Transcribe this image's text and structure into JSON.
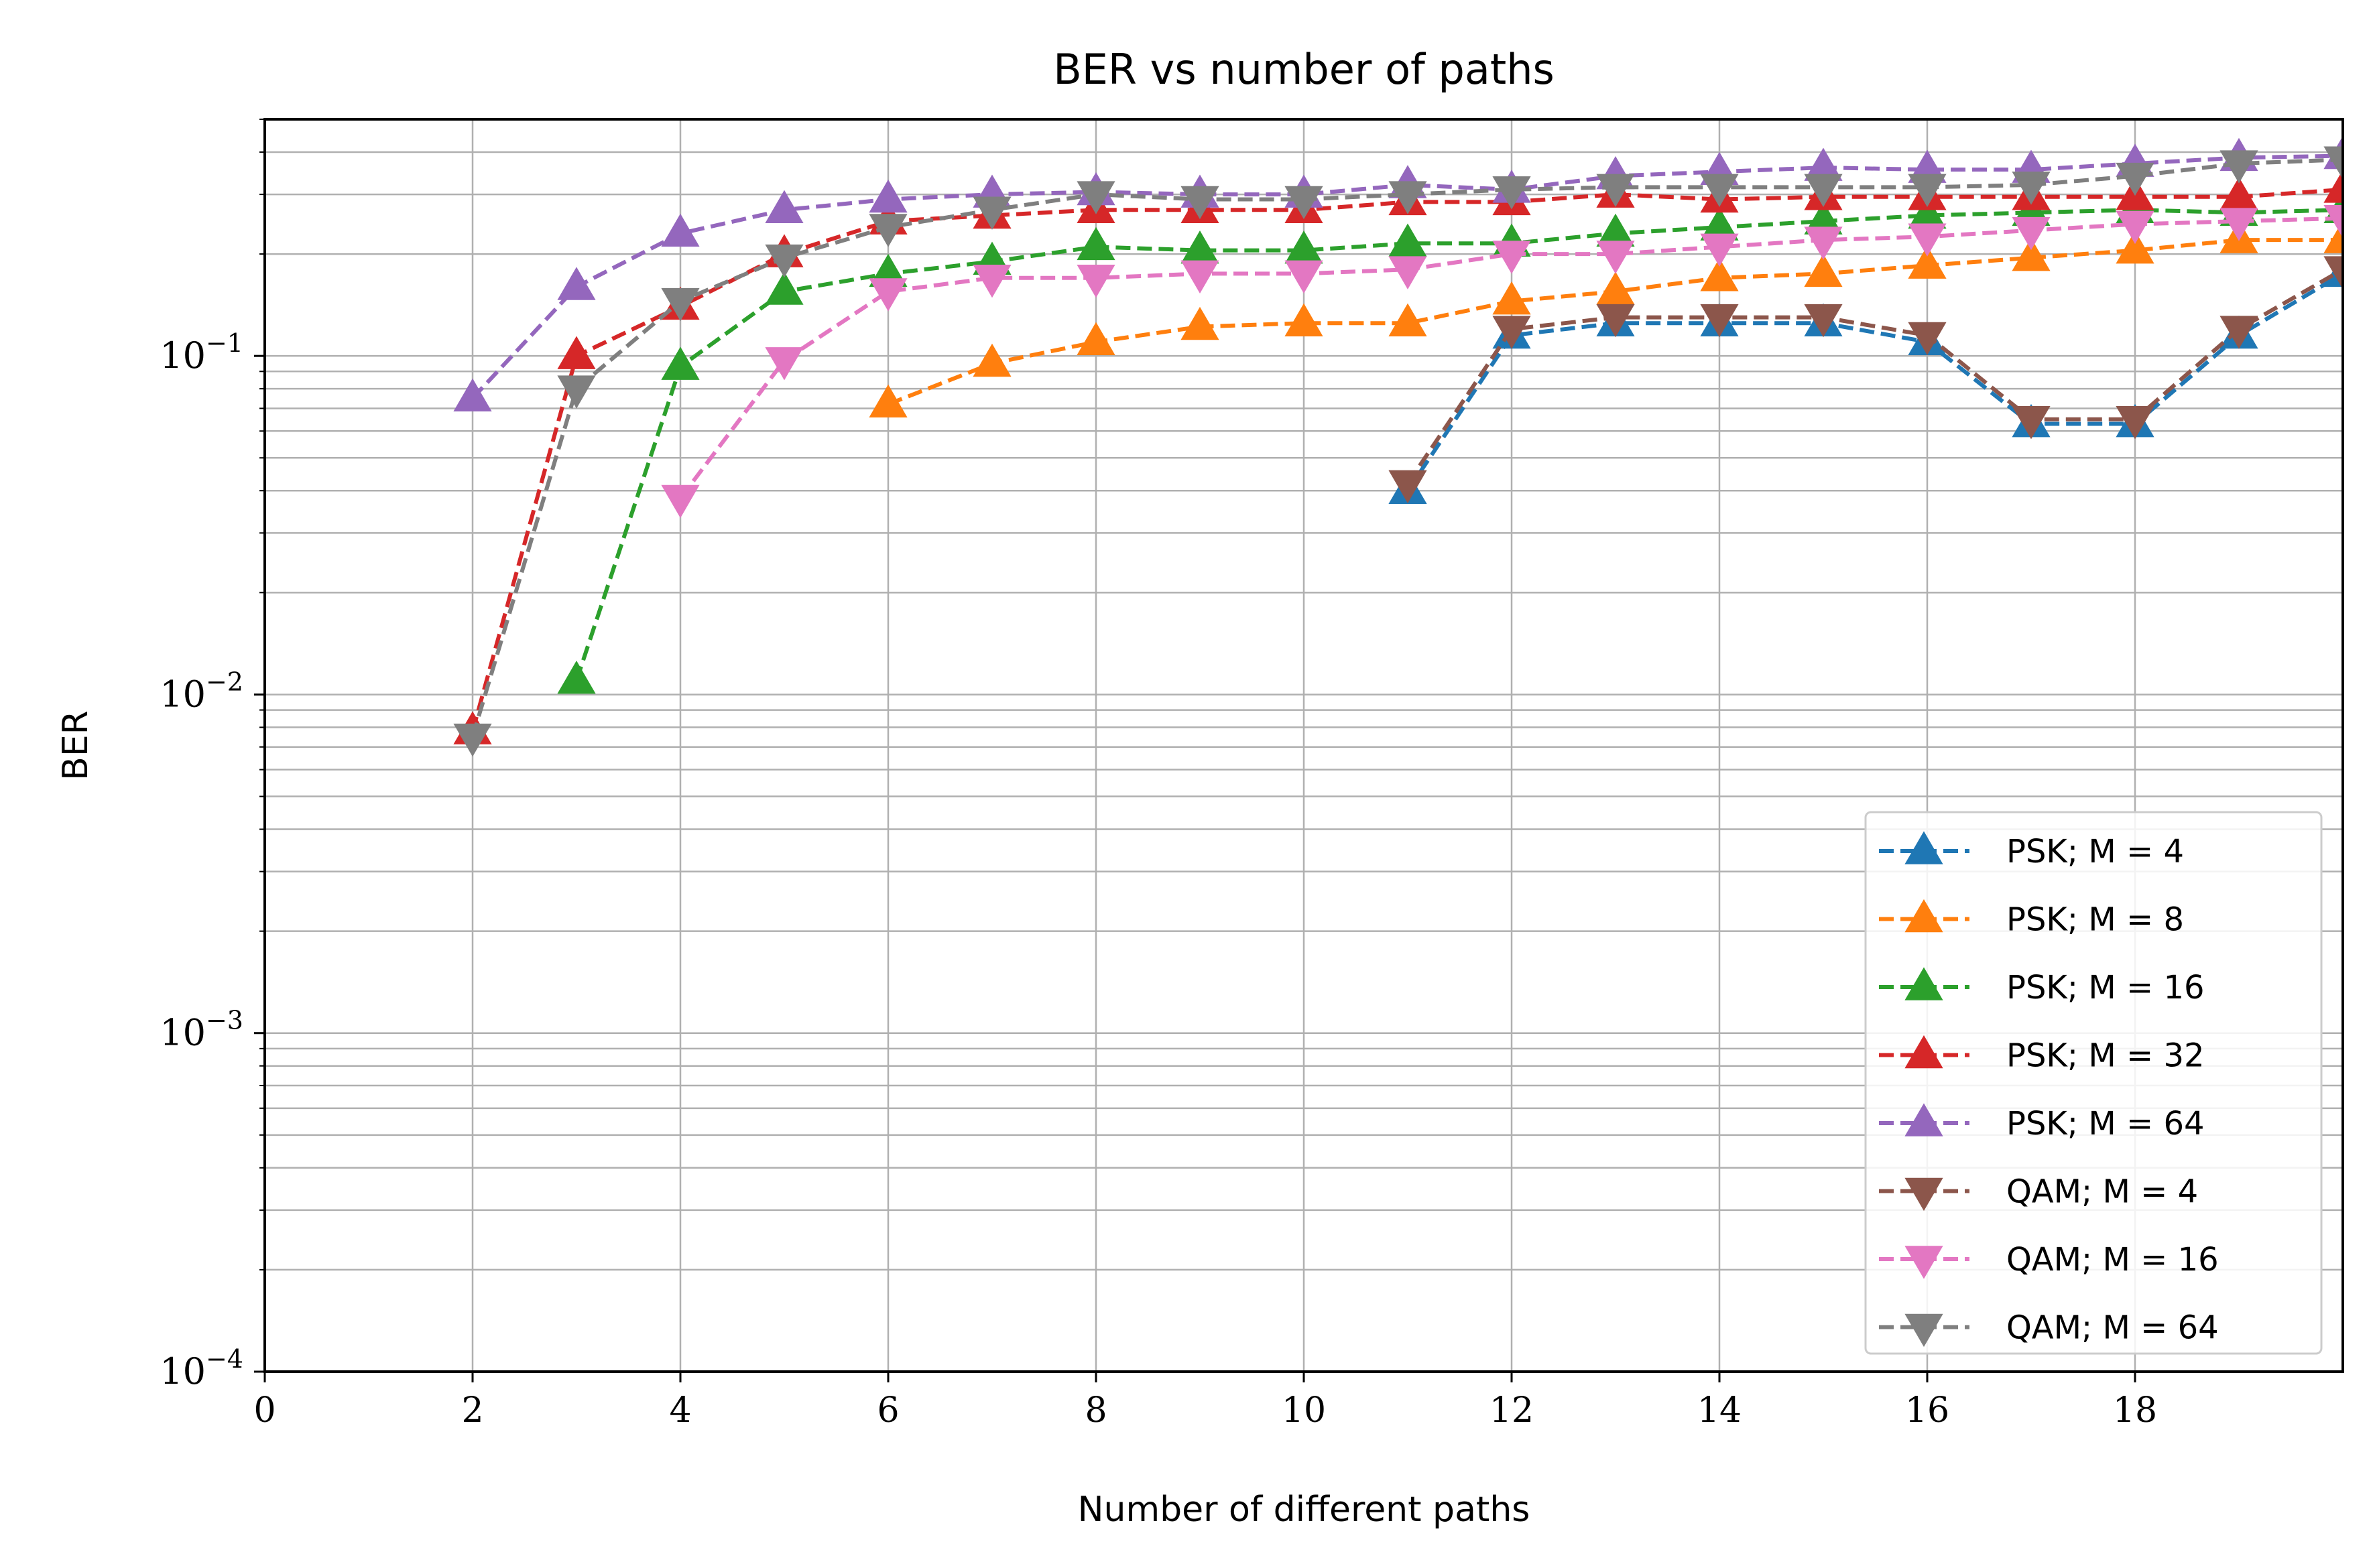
{
  "chart_data": {
    "type": "line",
    "title": "BER vs number of paths",
    "xlabel": "Number of different paths",
    "ylabel": "BER",
    "xlim": [
      0,
      20
    ],
    "ylim": [
      0.0001,
      0.5
    ],
    "yscale": "log",
    "grid": true,
    "legend_position": "lower right",
    "x_ticks": [
      0,
      2,
      4,
      6,
      8,
      10,
      12,
      14,
      16,
      18
    ],
    "x_tick_labels": [
      "0",
      "2",
      "4",
      "6",
      "8",
      "10",
      "12",
      "14",
      "16",
      "18"
    ],
    "y_ticks": [
      0.0001,
      0.001,
      0.01,
      0.1
    ],
    "y_tick_labels": [
      {
        "base": "10",
        "exp": "−4"
      },
      {
        "base": "10",
        "exp": "−3"
      },
      {
        "base": "10",
        "exp": "−2"
      },
      {
        "base": "10",
        "exp": "−1"
      }
    ],
    "series": [
      {
        "name": "PSK; M = 4",
        "color": "#1f77b4",
        "marker": "triangle-up",
        "x": [
          11,
          12,
          13,
          14,
          15,
          16,
          17,
          18,
          19,
          20
        ],
        "y": [
          0.04,
          0.115,
          0.125,
          0.125,
          0.125,
          0.11,
          0.063,
          0.063,
          0.115,
          0.175
        ]
      },
      {
        "name": "PSK; M = 8",
        "color": "#ff7f0e",
        "marker": "triangle-up",
        "x": [
          6,
          7,
          8,
          9,
          10,
          11,
          12,
          13,
          14,
          15,
          16,
          17,
          18,
          19,
          20
        ],
        "y": [
          0.072,
          0.095,
          0.11,
          0.122,
          0.125,
          0.125,
          0.145,
          0.155,
          0.17,
          0.175,
          0.185,
          0.195,
          0.205,
          0.22,
          0.22
        ]
      },
      {
        "name": "PSK; M = 16",
        "color": "#2ca02c",
        "marker": "triangle-up",
        "x": [
          3,
          4,
          5,
          6,
          7,
          8,
          9,
          10,
          11,
          12,
          13,
          14,
          15,
          16,
          17,
          18,
          19,
          20
        ],
        "y": [
          0.011,
          0.093,
          0.155,
          0.175,
          0.19,
          0.21,
          0.205,
          0.205,
          0.215,
          0.215,
          0.23,
          0.24,
          0.25,
          0.26,
          0.265,
          0.27,
          0.265,
          0.27
        ]
      },
      {
        "name": "PSK; M = 32",
        "color": "#d62728",
        "marker": "triangle-up",
        "x": [
          2,
          3,
          4,
          5,
          6,
          7,
          8,
          9,
          10,
          11,
          12,
          13,
          14,
          15,
          16,
          17,
          18,
          19,
          20
        ],
        "y": [
          0.0078,
          0.1,
          0.14,
          0.2,
          0.25,
          0.26,
          0.27,
          0.27,
          0.27,
          0.285,
          0.285,
          0.3,
          0.29,
          0.295,
          0.295,
          0.295,
          0.295,
          0.295,
          0.31
        ]
      },
      {
        "name": "PSK; M = 64",
        "color": "#9467bd",
        "marker": "triangle-up",
        "x": [
          2,
          3,
          4,
          5,
          6,
          7,
          8,
          9,
          10,
          11,
          12,
          13,
          14,
          15,
          16,
          17,
          18,
          19,
          20
        ],
        "y": [
          0.075,
          0.16,
          0.23,
          0.27,
          0.29,
          0.3,
          0.305,
          0.3,
          0.3,
          0.32,
          0.31,
          0.34,
          0.35,
          0.36,
          0.355,
          0.355,
          0.37,
          0.385,
          0.39
        ]
      },
      {
        "name": "QAM; M = 4",
        "color": "#8c564b",
        "marker": "triangle-down",
        "x": [
          11,
          12,
          13,
          14,
          15,
          16,
          17,
          18,
          19,
          20
        ],
        "y": [
          0.042,
          0.12,
          0.13,
          0.13,
          0.13,
          0.115,
          0.065,
          0.065,
          0.12,
          0.18
        ]
      },
      {
        "name": "QAM; M = 16",
        "color": "#e377c2",
        "marker": "triangle-down",
        "x": [
          4,
          5,
          6,
          7,
          8,
          9,
          10,
          11,
          12,
          13,
          14,
          15,
          16,
          17,
          18,
          19,
          20
        ],
        "y": [
          0.038,
          0.097,
          0.155,
          0.17,
          0.17,
          0.175,
          0.175,
          0.18,
          0.2,
          0.2,
          0.21,
          0.22,
          0.225,
          0.235,
          0.245,
          0.25,
          0.255
        ]
      },
      {
        "name": "QAM; M = 64",
        "color": "#7f7f7f",
        "marker": "triangle-down",
        "x": [
          2,
          3,
          4,
          5,
          6,
          7,
          8,
          9,
          10,
          11,
          12,
          13,
          14,
          15,
          16,
          17,
          18,
          19,
          20
        ],
        "y": [
          0.0075,
          0.08,
          0.145,
          0.195,
          0.24,
          0.27,
          0.3,
          0.29,
          0.29,
          0.3,
          0.31,
          0.315,
          0.315,
          0.315,
          0.315,
          0.32,
          0.34,
          0.37,
          0.38
        ]
      }
    ]
  }
}
